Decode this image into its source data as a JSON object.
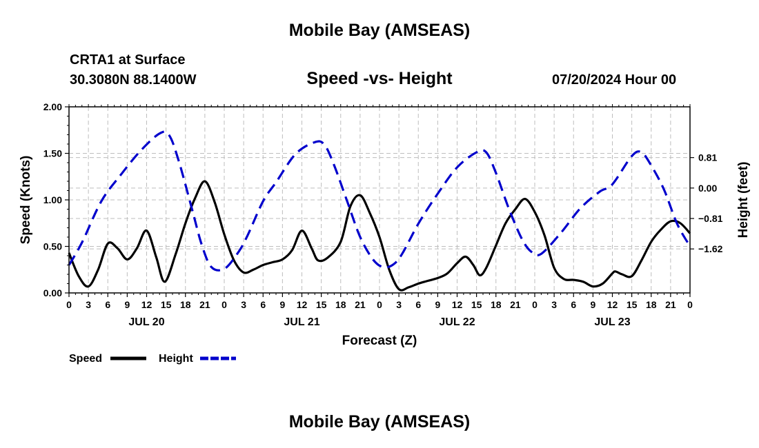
{
  "header": {
    "title": "Mobile Bay (AMSEAS)",
    "station": "CRTA1 at Surface",
    "coords": "30.3080N  88.1400W",
    "subtitle": "Speed -vs- Height",
    "timestamp": "07/20/2024 Hour 00"
  },
  "footer": {
    "title": "Mobile Bay (AMSEAS)"
  },
  "chart_data": {
    "type": "line",
    "title": "Speed -vs- Height",
    "xlabel": "Forecast (Z)",
    "ylabel": "Speed (Knots)",
    "y2label": "Height (feet)",
    "x_range_hours": [
      0,
      96
    ],
    "x_tick_step_hours": 3,
    "x_tick_labels": [
      "0",
      "3",
      "6",
      "9",
      "12",
      "15",
      "18",
      "21",
      "0",
      "3",
      "6",
      "9",
      "12",
      "15",
      "18",
      "21",
      "0",
      "3",
      "6",
      "9",
      "12",
      "15",
      "18",
      "21",
      "0",
      "3",
      "6",
      "9",
      "12",
      "15",
      "18",
      "21",
      "0"
    ],
    "date_labels": [
      {
        "hour": 12,
        "label": "JUL 20"
      },
      {
        "hour": 36,
        "label": "JUL 21"
      },
      {
        "hour": 60,
        "label": "JUL 22"
      },
      {
        "hour": 84,
        "label": "JUL 23"
      }
    ],
    "ylim": [
      0,
      2
    ],
    "y_ticks": [
      0,
      0.5,
      1,
      1.5,
      2
    ],
    "y_tick_labels": [
      "0.00",
      "0.50",
      "1.00",
      "1.50",
      "2.00"
    ],
    "y2lim": [
      -2.79,
      2.16
    ],
    "y2_ticks": [
      -1.62,
      -0.81,
      0,
      0.81
    ],
    "y2_tick_labels": [
      "−1.62",
      "−0.81",
      "0.00",
      "0.81"
    ],
    "grid": true,
    "legend": [
      {
        "label": "Speed",
        "color": "#000000",
        "style": "solid"
      },
      {
        "label": "Height",
        "color": "#0000cc",
        "style": "dashed"
      }
    ],
    "series": [
      {
        "name": "Speed",
        "axis": "left",
        "color": "#000000",
        "style": "solid",
        "points": [
          [
            0,
            0.43
          ],
          [
            1.5,
            0.18
          ],
          [
            3,
            0.07
          ],
          [
            4.5,
            0.25
          ],
          [
            6,
            0.53
          ],
          [
            7.5,
            0.48
          ],
          [
            9,
            0.36
          ],
          [
            10.5,
            0.48
          ],
          [
            12,
            0.67
          ],
          [
            13.5,
            0.38
          ],
          [
            14.8,
            0.12
          ],
          [
            16.5,
            0.42
          ],
          [
            18,
            0.75
          ],
          [
            19.5,
            1.02
          ],
          [
            21,
            1.2
          ],
          [
            22.5,
            0.98
          ],
          [
            24,
            0.63
          ],
          [
            25.5,
            0.35
          ],
          [
            27,
            0.22
          ],
          [
            28.5,
            0.25
          ],
          [
            30,
            0.3
          ],
          [
            31.5,
            0.33
          ],
          [
            33,
            0.36
          ],
          [
            34.5,
            0.46
          ],
          [
            36,
            0.67
          ],
          [
            37.5,
            0.48
          ],
          [
            38.5,
            0.35
          ],
          [
            40,
            0.38
          ],
          [
            42,
            0.55
          ],
          [
            43.5,
            0.93
          ],
          [
            45,
            1.05
          ],
          [
            46.5,
            0.86
          ],
          [
            48,
            0.6
          ],
          [
            49.5,
            0.25
          ],
          [
            51,
            0.04
          ],
          [
            52.5,
            0.06
          ],
          [
            54,
            0.1
          ],
          [
            55.5,
            0.13
          ],
          [
            57,
            0.16
          ],
          [
            58.5,
            0.21
          ],
          [
            60,
            0.32
          ],
          [
            61.3,
            0.39
          ],
          [
            62.5,
            0.3
          ],
          [
            63.5,
            0.19
          ],
          [
            64.5,
            0.27
          ],
          [
            66,
            0.51
          ],
          [
            67.5,
            0.75
          ],
          [
            69,
            0.9
          ],
          [
            70.5,
            1.01
          ],
          [
            72,
            0.87
          ],
          [
            73.5,
            0.62
          ],
          [
            75,
            0.27
          ],
          [
            76.5,
            0.15
          ],
          [
            78,
            0.14
          ],
          [
            79.5,
            0.12
          ],
          [
            81,
            0.07
          ],
          [
            82.5,
            0.1
          ],
          [
            84,
            0.21
          ],
          [
            84.5,
            0.23
          ],
          [
            85.5,
            0.2
          ],
          [
            87,
            0.18
          ],
          [
            88.5,
            0.35
          ],
          [
            90,
            0.55
          ],
          [
            91.5,
            0.68
          ],
          [
            93,
            0.77
          ],
          [
            94.5,
            0.75
          ],
          [
            96,
            0.64
          ]
        ]
      },
      {
        "name": "Height",
        "axis": "right",
        "color": "#0000cc",
        "style": "dashed",
        "points": [
          [
            0,
            -2.05
          ],
          [
            2,
            -1.45
          ],
          [
            5,
            -0.35
          ],
          [
            8,
            0.35
          ],
          [
            11,
            0.98
          ],
          [
            14,
            1.45
          ],
          [
            15.5,
            1.4
          ],
          [
            17,
            0.7
          ],
          [
            19,
            -0.55
          ],
          [
            20.5,
            -1.5
          ],
          [
            22,
            -2.1
          ],
          [
            24,
            -2.15
          ],
          [
            26,
            -1.75
          ],
          [
            27.5,
            -1.3
          ],
          [
            30,
            -0.35
          ],
          [
            32,
            0.15
          ],
          [
            35,
            0.9
          ],
          [
            38,
            1.22
          ],
          [
            39.5,
            1.15
          ],
          [
            41,
            0.6
          ],
          [
            43,
            -0.35
          ],
          [
            45,
            -1.3
          ],
          [
            47,
            -1.9
          ],
          [
            48.5,
            -2.1
          ],
          [
            50,
            -2.05
          ],
          [
            51.5,
            -1.75
          ],
          [
            54,
            -0.95
          ],
          [
            57,
            -0.15
          ],
          [
            60,
            0.55
          ],
          [
            63,
            0.95
          ],
          [
            64.5,
            0.95
          ],
          [
            66,
            0.4
          ],
          [
            68,
            -0.55
          ],
          [
            70,
            -1.35
          ],
          [
            71.5,
            -1.7
          ],
          [
            73,
            -1.75
          ],
          [
            76,
            -1.2
          ],
          [
            79,
            -0.55
          ],
          [
            82,
            -0.1
          ],
          [
            84,
            0.1
          ],
          [
            87,
            0.85
          ],
          [
            88.5,
            0.95
          ],
          [
            90,
            0.6
          ],
          [
            92,
            -0.05
          ],
          [
            94,
            -0.95
          ],
          [
            96,
            -1.55
          ]
        ]
      }
    ]
  }
}
